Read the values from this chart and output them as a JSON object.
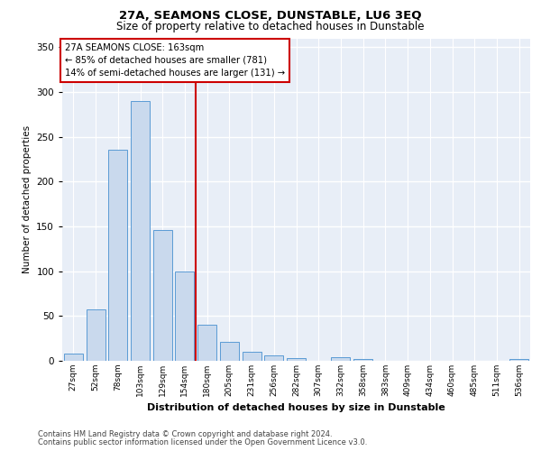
{
  "title": "27A, SEAMONS CLOSE, DUNSTABLE, LU6 3EQ",
  "subtitle": "Size of property relative to detached houses in Dunstable",
  "xlabel": "Distribution of detached houses by size in Dunstable",
  "ylabel": "Number of detached properties",
  "categories": [
    "27sqm",
    "52sqm",
    "78sqm",
    "103sqm",
    "129sqm",
    "154sqm",
    "180sqm",
    "205sqm",
    "231sqm",
    "256sqm",
    "282sqm",
    "307sqm",
    "332sqm",
    "358sqm",
    "383sqm",
    "409sqm",
    "434sqm",
    "460sqm",
    "485sqm",
    "511sqm",
    "536sqm"
  ],
  "values": [
    8,
    57,
    236,
    290,
    146,
    100,
    40,
    21,
    10,
    6,
    3,
    0,
    4,
    2,
    0,
    0,
    0,
    0,
    0,
    0,
    2
  ],
  "bar_color": "#c9d9ed",
  "bar_edge_color": "#5b9bd5",
  "background_color": "#e8eef7",
  "grid_color": "#ffffff",
  "vline_x": 5.5,
  "vline_color": "#cc0000",
  "annotation_text": "27A SEAMONS CLOSE: 163sqm\n← 85% of detached houses are smaller (781)\n14% of semi-detached houses are larger (131) →",
  "annotation_box_color": "#cc0000",
  "ylim": [
    0,
    360
  ],
  "yticks": [
    0,
    50,
    100,
    150,
    200,
    250,
    300,
    350
  ],
  "footer_line1": "Contains HM Land Registry data © Crown copyright and database right 2024.",
  "footer_line2": "Contains public sector information licensed under the Open Government Licence v3.0."
}
